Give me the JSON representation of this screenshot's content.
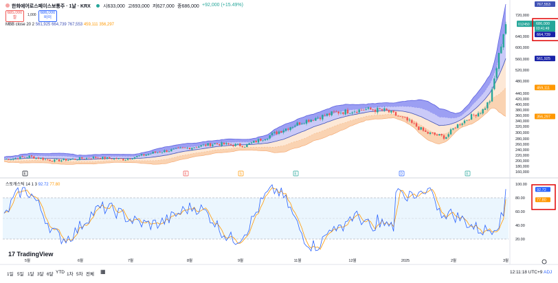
{
  "header": {
    "symbol": "한화에어로스페이스보통주 · 1날 · KRX",
    "open": "시633,000",
    "high": "고693,000",
    "low": "저627,000",
    "close": "종686,000",
    "change": "+92,000 (+15.49%)",
    "sell_price": "685,000",
    "sell_label": "팔",
    "spread": "1,000",
    "buy_price": "686,000",
    "buy_label": "바이"
  },
  "bb_legend": {
    "name": "MBB close 20 2",
    "v1": "561,925",
    "v2": "664,739",
    "v3": "767,553",
    "v4": "459,111",
    "v5": "356,297"
  },
  "stoch_legend": {
    "name": "스토캐스틱 14 1 3",
    "k": "92.72",
    "d": "77.80"
  },
  "price_badges": {
    "ticker": "012450",
    "last": "686,000",
    "countdown": "03:41:49",
    "b767": "767,553",
    "b664": "664,739",
    "b561": "561,925",
    "b459": "459,111",
    "b356": "356,297",
    "stoch_k": "92.72",
    "stoch_d": "77.80"
  },
  "event_markers": [
    "E",
    "E",
    "S",
    "E",
    "D",
    "E"
  ],
  "bottom_bar": {
    "ranges": [
      "1일",
      "5일",
      "1달",
      "3달",
      "6달",
      "YTD",
      "1차",
      "5차",
      "전체"
    ],
    "time": "12:11:18 UTC+9",
    "adj": "ADJ"
  },
  "logo": "TradingView",
  "colors": {
    "up": "#26a69a",
    "down": "#ef5350",
    "upper_fill": "#7b7fef",
    "mid_fill": "#b3b4f5",
    "lower_fill": "#f9cba4",
    "mid_line": "#3f51b5",
    "k_line": "#2962ff",
    "d_line": "#ff9800",
    "highlight": "#e00000"
  },
  "chart_data": [
    {
      "type": "candlestick",
      "title": "한화에어로스페이스보통주 · 1날 · KRX",
      "y_axis_ticks": [
        160000,
        180000,
        200000,
        220000,
        240000,
        260000,
        280000,
        300000,
        320000,
        340000,
        360000,
        380000,
        400000,
        420000,
        440000,
        480000,
        520000,
        560000,
        600000,
        640000,
        720000
      ],
      "x_axis_ticks": [
        "5월",
        "6월",
        "7월",
        "8월",
        "9월",
        "10월",
        "11월",
        "12월",
        "2025",
        "2월",
        "3월"
      ],
      "ylim": [
        150000,
        780000
      ],
      "price_series": [
        {
          "x": "5월",
          "close": 205000
        },
        {
          "x": "6월",
          "close": 210000
        },
        {
          "x": "7월",
          "close": 225000
        },
        {
          "x": "8월",
          "close": 262000
        },
        {
          "x": "9월",
          "close": 325000
        },
        {
          "x": "10월",
          "close": 380000
        },
        {
          "x": "11월",
          "close": 378000
        },
        {
          "x": "12월",
          "close": 305000
        },
        {
          "x": "2025",
          "close": 355000
        },
        {
          "x": "2월",
          "close": 420000
        },
        {
          "x": "3월",
          "close": 686000
        }
      ],
      "last_open": 633000,
      "last_high": 693000,
      "last_low": 627000,
      "last_close": 686000,
      "bollinger": {
        "upper": 767553,
        "middle_upper": 664739,
        "middle": 561925,
        "middle_lower": 459111,
        "lower": 356297
      }
    },
    {
      "type": "line",
      "title": "스토캐스틱 14 1 3",
      "y_axis_ticks": [
        20,
        40,
        60,
        80,
        100
      ],
      "ylim": [
        0,
        100
      ],
      "band": [
        20,
        80
      ],
      "series": [
        {
          "name": "%K",
          "last": 92.72
        },
        {
          "name": "%D",
          "last": 77.8
        }
      ]
    }
  ]
}
